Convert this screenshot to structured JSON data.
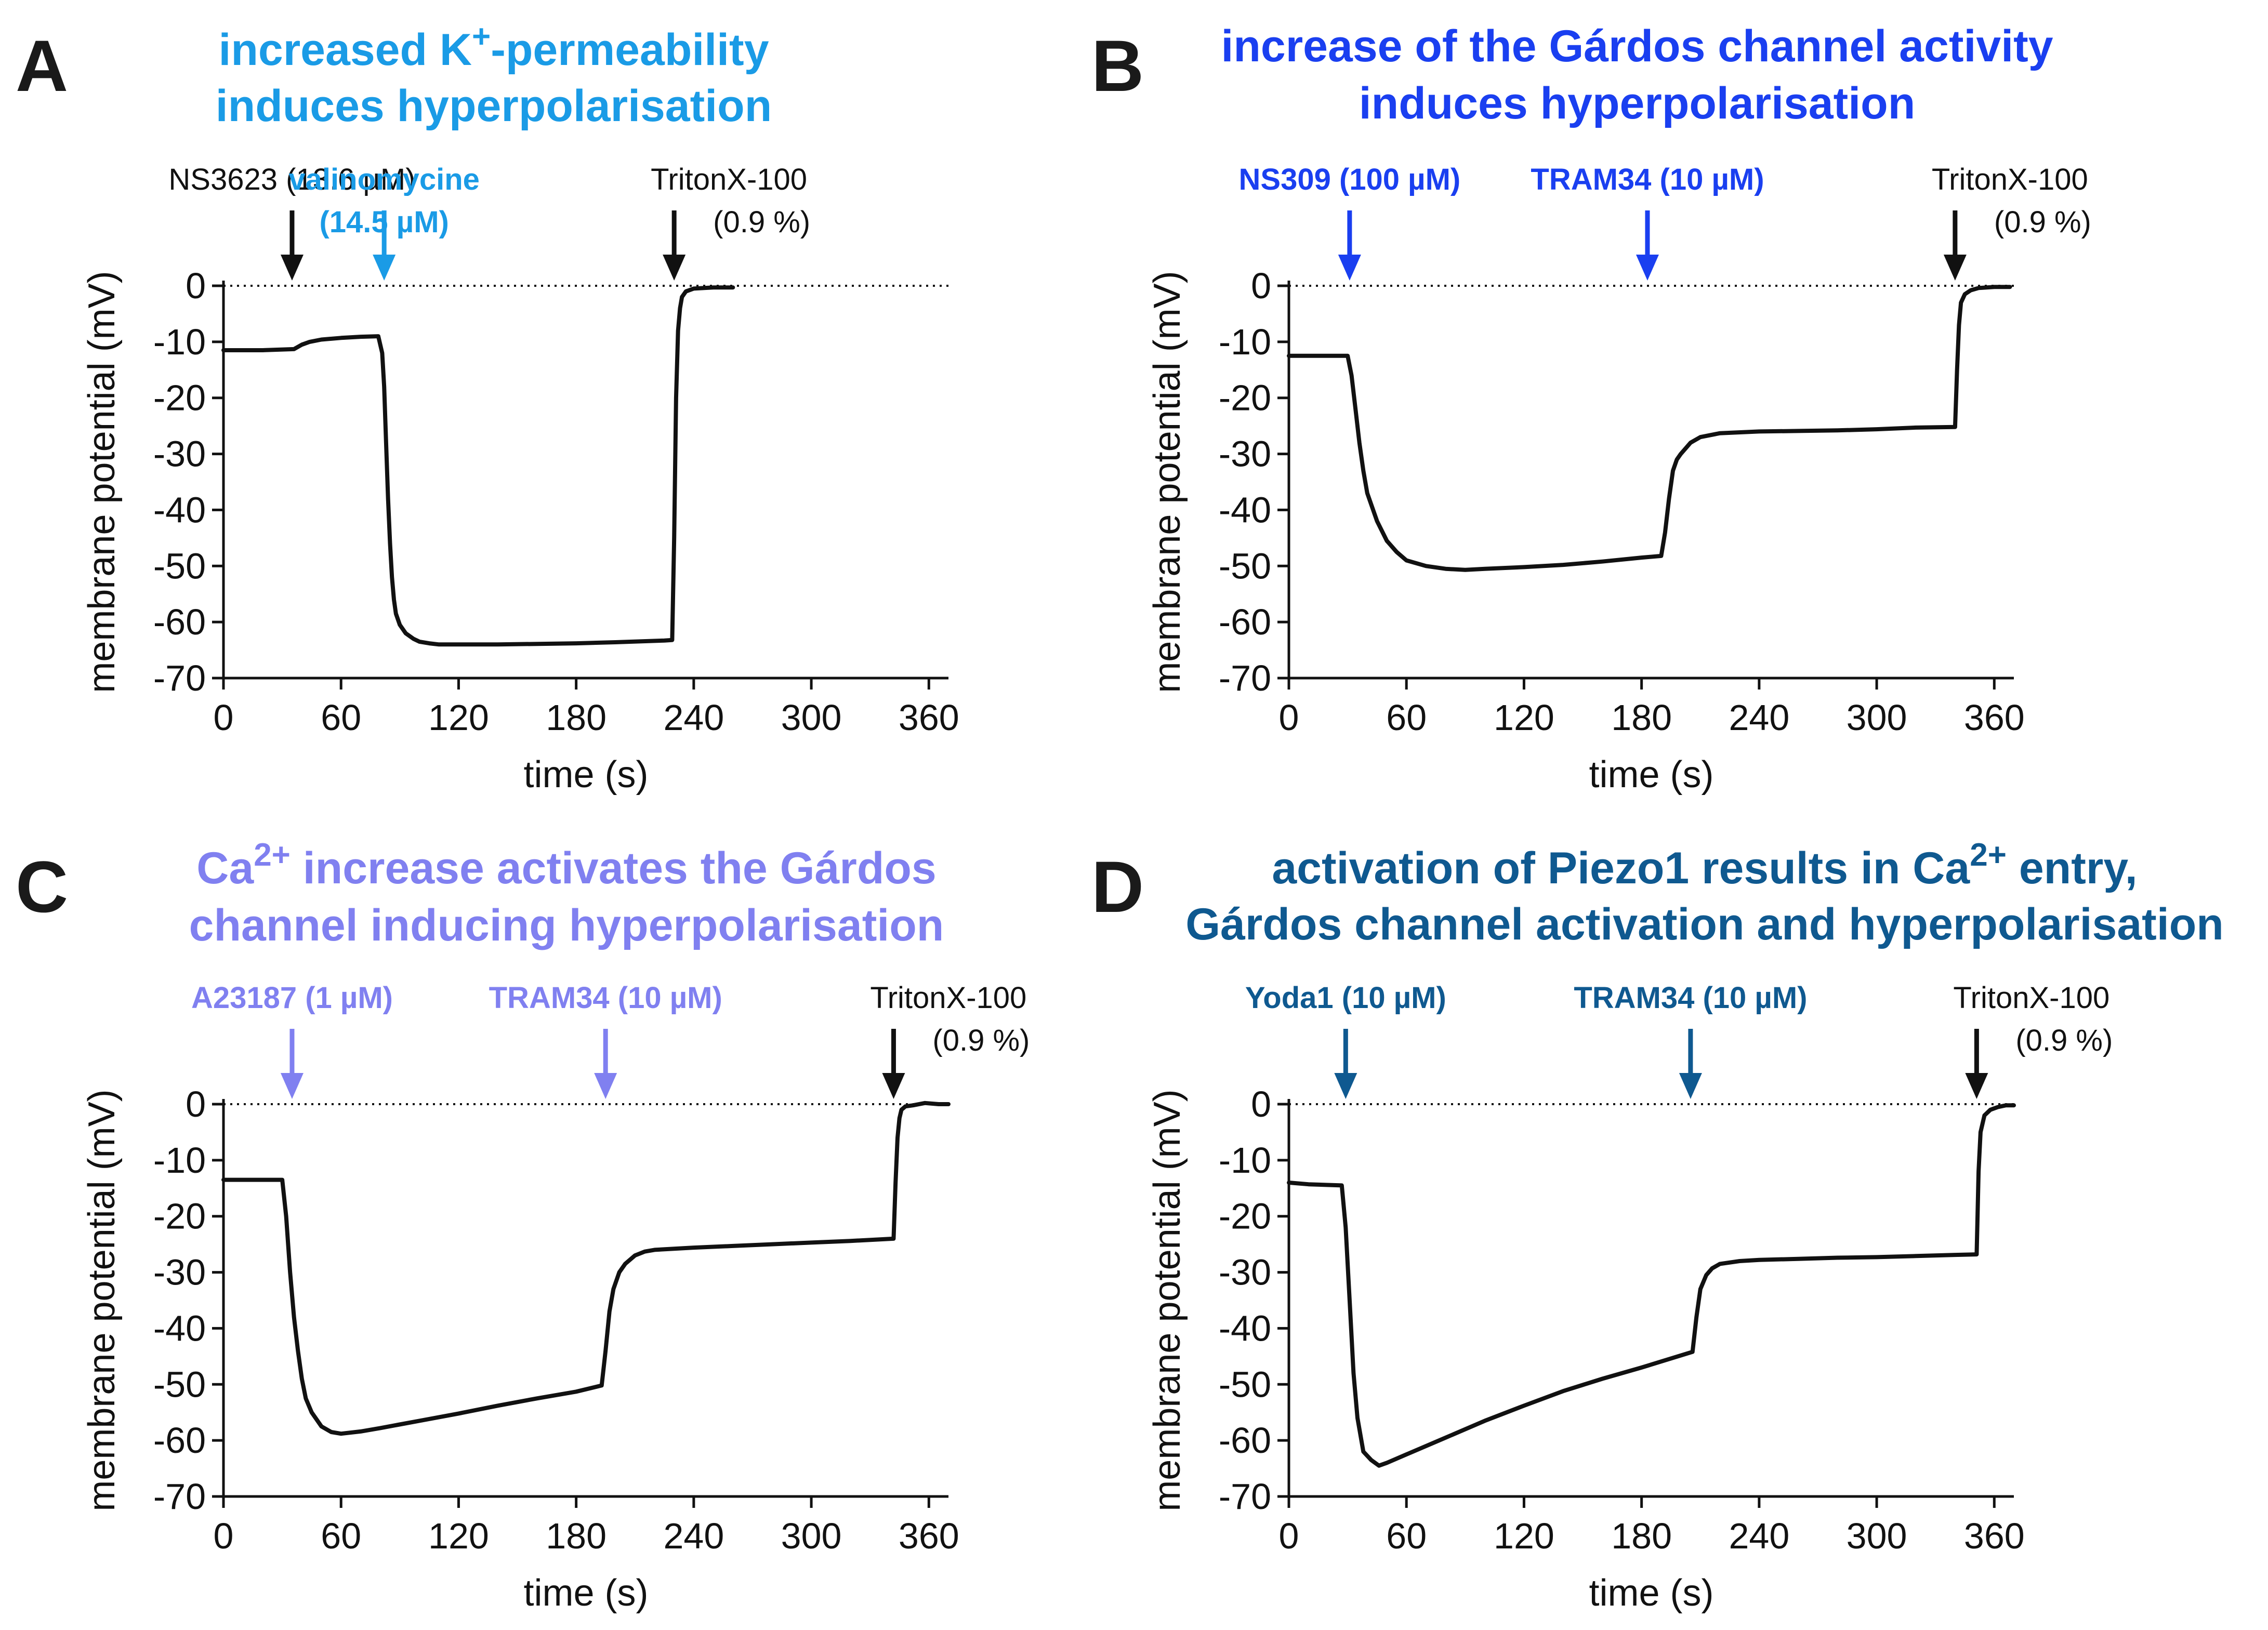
{
  "chart_data": [
    {
      "type": "line",
      "panel": "A",
      "title": [
        "increased K+-permeability",
        "induces hyperpolarisation"
      ],
      "title_color": "#1a9be6",
      "xlabel": "time (s)",
      "ylabel": "membrane potential (mV)",
      "xlim": [
        0,
        370
      ],
      "ylim": [
        -70,
        0
      ],
      "xticks": [
        0,
        60,
        120,
        180,
        240,
        300,
        360
      ],
      "yticks": [
        0,
        -10,
        -20,
        -30,
        -40,
        -50,
        -60,
        -70
      ],
      "zero_line": "dotted",
      "annotations": [
        {
          "lines": [
            "NS3623 (13.6 µM)"
          ],
          "x": 35,
          "color": "#111111",
          "bold": false
        },
        {
          "lines": [
            "valinomycine",
            "(14.5 µM)"
          ],
          "x": 82,
          "color": "#1a9be6",
          "bold": true
        },
        {
          "lines": [
            "TritonX-100",
            "(0.9 %)"
          ],
          "x": 230,
          "color": "#111111",
          "bold": false
        }
      ],
      "series": [
        {
          "x": [
            0,
            20,
            36,
            40,
            44,
            50,
            60,
            70,
            79,
            81,
            82,
            83,
            84,
            85,
            86,
            87,
            88,
            90,
            93,
            97,
            100,
            105,
            110,
            115,
            120,
            140,
            160,
            180,
            200,
            225,
            229,
            230,
            231,
            232,
            233,
            234,
            236,
            240,
            250,
            260
          ],
          "y": [
            -11.5,
            -11.5,
            -11.3,
            -10.5,
            -10,
            -9.6,
            -9.3,
            -9.1,
            -9.0,
            -12,
            -18,
            -28,
            -38,
            -46,
            -52,
            -56,
            -58.5,
            -60.5,
            -62,
            -63,
            -63.5,
            -63.8,
            -64,
            -64,
            -64,
            -64,
            -63.9,
            -63.8,
            -63.6,
            -63.3,
            -63.2,
            -45,
            -20,
            -8,
            -4,
            -2,
            -1,
            -0.5,
            -0.3,
            -0.3
          ]
        }
      ]
    },
    {
      "type": "line",
      "panel": "B",
      "title": [
        "increase of the Gárdos channel activity",
        "induces hyperpolarisation"
      ],
      "title_color": "#1a3ff0",
      "xlabel": "time (s)",
      "ylabel": "membrane potential (mV)",
      "xlim": [
        0,
        370
      ],
      "ylim": [
        -70,
        0
      ],
      "xticks": [
        0,
        60,
        120,
        180,
        240,
        300,
        360
      ],
      "yticks": [
        0,
        -10,
        -20,
        -30,
        -40,
        -50,
        -60,
        -70
      ],
      "zero_line": "dotted",
      "annotations": [
        {
          "lines": [
            "NS309 (100 µM)"
          ],
          "x": 31,
          "color": "#1a3ff0",
          "bold": true
        },
        {
          "lines": [
            "TRAM34 (10 µM)"
          ],
          "x": 183,
          "color": "#1a3ff0",
          "bold": true
        },
        {
          "lines": [
            "TritonX-100",
            "(0.9 %)"
          ],
          "x": 340,
          "color": "#111111",
          "bold": false
        }
      ],
      "series": [
        {
          "x": [
            0,
            30,
            32,
            34,
            36,
            38,
            40,
            45,
            50,
            55,
            60,
            70,
            80,
            90,
            100,
            120,
            140,
            160,
            180,
            190,
            192,
            194,
            196,
            198,
            200,
            205,
            210,
            220,
            240,
            260,
            280,
            300,
            320,
            340,
            341,
            342,
            343,
            345,
            348,
            352,
            360,
            368
          ],
          "y": [
            -12.5,
            -12.5,
            -16,
            -22,
            -28,
            -33,
            -37,
            -42,
            -45.5,
            -47.5,
            -49,
            -50,
            -50.5,
            -50.7,
            -50.5,
            -50.2,
            -49.8,
            -49.2,
            -48.5,
            -48.2,
            -44,
            -38,
            -33,
            -31,
            -30,
            -28,
            -27,
            -26.3,
            -26,
            -25.9,
            -25.8,
            -25.6,
            -25.3,
            -25.2,
            -15,
            -7,
            -3,
            -1.5,
            -0.8,
            -0.4,
            -0.2,
            -0.2
          ]
        }
      ]
    },
    {
      "type": "line",
      "panel": "C",
      "title": [
        "Ca2+ increase activates the Gárdos",
        "channel inducing hyperpolarisation"
      ],
      "title_color": "#8080f0",
      "xlabel": "time (s)",
      "ylabel": "membrane potential (mV)",
      "xlim": [
        0,
        370
      ],
      "ylim": [
        -70,
        0
      ],
      "xticks": [
        0,
        60,
        120,
        180,
        240,
        300,
        360
      ],
      "yticks": [
        0,
        -10,
        -20,
        -30,
        -40,
        -50,
        -60,
        -70
      ],
      "zero_line": "dotted",
      "annotations": [
        {
          "lines": [
            "A23187 (1 µM)"
          ],
          "x": 35,
          "color": "#8080f0",
          "bold": true
        },
        {
          "lines": [
            "TRAM34 (10 µM)"
          ],
          "x": 195,
          "color": "#8080f0",
          "bold": true
        },
        {
          "lines": [
            "TritonX-100",
            "(0.9 %)"
          ],
          "x": 342,
          "color": "#111111",
          "bold": false
        }
      ],
      "series": [
        {
          "x": [
            0,
            30,
            32,
            34,
            36,
            38,
            40,
            42,
            45,
            50,
            55,
            60,
            70,
            80,
            100,
            120,
            140,
            160,
            180,
            193,
            195,
            197,
            199,
            202,
            205,
            210,
            215,
            220,
            240,
            260,
            280,
            300,
            320,
            342,
            343,
            344,
            345,
            346,
            348,
            352,
            358,
            365,
            370
          ],
          "y": [
            -13.5,
            -13.5,
            -20,
            -30,
            -38,
            -44,
            -49,
            -52.5,
            -55,
            -57.5,
            -58.5,
            -58.8,
            -58.4,
            -57.8,
            -56.5,
            -55.2,
            -53.8,
            -52.5,
            -51.3,
            -50.2,
            -44,
            -37,
            -33,
            -30,
            -28.5,
            -27,
            -26.3,
            -26,
            -25.6,
            -25.3,
            -25,
            -24.7,
            -24.4,
            -24,
            -14,
            -6,
            -2.5,
            -1,
            -0.4,
            -0.2,
            0.2,
            0,
            0
          ]
        }
      ]
    },
    {
      "type": "line",
      "panel": "D",
      "title": [
        "activation of Piezo1 results in Ca2+ entry,",
        "Gárdos channel activation and hyperpolarisation"
      ],
      "title_color": "#0f5990",
      "xlabel": "time (s)",
      "ylabel": "membrane potential (mV)",
      "xlim": [
        0,
        370
      ],
      "ylim": [
        -70,
        0
      ],
      "xticks": [
        0,
        60,
        120,
        180,
        240,
        300,
        360
      ],
      "yticks": [
        0,
        -10,
        -20,
        -30,
        -40,
        -50,
        -60,
        -70
      ],
      "zero_line": "dotted",
      "annotations": [
        {
          "lines": [
            "Yoda1 (10 µM)"
          ],
          "x": 29,
          "color": "#0f5990",
          "bold": true
        },
        {
          "lines": [
            "TRAM34 (10 µM)"
          ],
          "x": 205,
          "color": "#0f5990",
          "bold": true
        },
        {
          "lines": [
            "TritonX-100",
            "(0.9 %)"
          ],
          "x": 351,
          "color": "#111111",
          "bold": false
        }
      ],
      "series": [
        {
          "x": [
            0,
            10,
            27,
            29,
            31,
            33,
            35,
            38,
            42,
            46,
            50,
            60,
            80,
            100,
            120,
            140,
            160,
            180,
            206,
            208,
            210,
            213,
            216,
            220,
            230,
            240,
            260,
            280,
            300,
            320,
            340,
            351,
            352,
            353,
            355,
            358,
            362,
            366,
            370
          ],
          "y": [
            -14,
            -14.3,
            -14.5,
            -22,
            -35,
            -48,
            -56,
            -62,
            -63.5,
            -64.5,
            -64,
            -62.5,
            -59.5,
            -56.5,
            -53.8,
            -51.2,
            -49,
            -47,
            -44.2,
            -38,
            -33,
            -30.5,
            -29.3,
            -28.5,
            -28,
            -27.8,
            -27.6,
            -27.4,
            -27.3,
            -27.1,
            -26.9,
            -26.8,
            -12,
            -5,
            -2,
            -1,
            -0.5,
            -0.2,
            -0.2
          ]
        }
      ]
    }
  ]
}
